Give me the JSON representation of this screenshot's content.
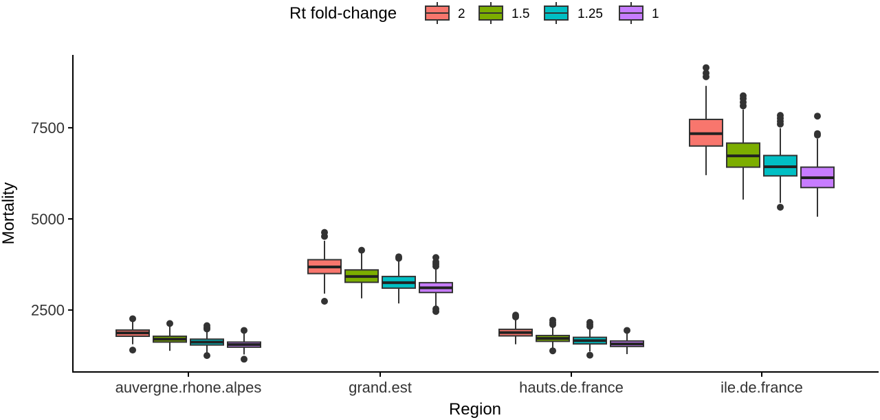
{
  "chart_data": {
    "type": "boxplot",
    "xlabel": "Region",
    "ylabel": "Mortality",
    "ylim": [
      800,
      9500
    ],
    "yticks": [
      2500,
      5000,
      7500
    ],
    "categories": [
      "auvergne.rhone.alpes",
      "grand.est",
      "hauts.de.france",
      "ile.de.france"
    ],
    "legend": {
      "title": "Rt fold-change",
      "position": "top"
    },
    "grid": false,
    "series": [
      {
        "name": "2",
        "color": "#F8766D",
        "boxes": [
          {
            "q1": 1780,
            "median": 1870,
            "q3": 1950,
            "whisker_low": 1560,
            "whisker_high": 2180,
            "outliers": [
              1400,
              2260
            ]
          },
          {
            "q1": 3500,
            "median": 3680,
            "q3": 3880,
            "whisker_low": 2950,
            "whisker_high": 4400,
            "outliers": [
              2740,
              4520,
              4630
            ]
          },
          {
            "q1": 1790,
            "median": 1880,
            "q3": 1970,
            "whisker_low": 1560,
            "whisker_high": 2250,
            "outliers": [
              2310,
              2360
            ]
          },
          {
            "q1": 7000,
            "median": 7340,
            "q3": 7730,
            "whisker_low": 6200,
            "whisker_high": 8650,
            "outliers": [
              8900,
              9000,
              9150
            ]
          }
        ]
      },
      {
        "name": "1.5",
        "color": "#7CAE00",
        "boxes": [
          {
            "q1": 1620,
            "median": 1700,
            "q3": 1780,
            "whisker_low": 1380,
            "whisker_high": 2060,
            "outliers": [
              2130
            ]
          },
          {
            "q1": 3260,
            "median": 3420,
            "q3": 3600,
            "whisker_low": 2820,
            "whisker_high": 4100,
            "outliers": [
              4140
            ]
          },
          {
            "q1": 1640,
            "median": 1720,
            "q3": 1800,
            "whisker_low": 1450,
            "whisker_high": 2060,
            "outliers": [
              1380,
              2100,
              2150,
              2220
            ]
          },
          {
            "q1": 6420,
            "median": 6730,
            "q3": 7080,
            "whisker_low": 5530,
            "whisker_high": 8000,
            "outliers": [
              8100,
              8200,
              8300,
              8380
            ]
          }
        ]
      },
      {
        "name": "1.25",
        "color": "#00BFC4",
        "boxes": [
          {
            "q1": 1540,
            "median": 1620,
            "q3": 1700,
            "whisker_low": 1330,
            "whisker_high": 1920,
            "outliers": [
              1250,
              1980,
              2020,
              2070
            ]
          },
          {
            "q1": 3100,
            "median": 3250,
            "q3": 3420,
            "whisker_low": 2680,
            "whisker_high": 3880,
            "outliers": [
              3920,
              3960
            ]
          },
          {
            "q1": 1570,
            "median": 1660,
            "q3": 1750,
            "whisker_low": 1360,
            "whisker_high": 2000,
            "outliers": [
              1260,
              2050,
              2100,
              2160
            ]
          },
          {
            "q1": 6180,
            "median": 6430,
            "q3": 6740,
            "whisker_low": 5440,
            "whisker_high": 7490,
            "outliers": [
              5320,
              7600,
              7680,
              7760,
              7840
            ]
          }
        ]
      },
      {
        "name": "1",
        "color": "#C77CFF",
        "boxes": [
          {
            "q1": 1480,
            "median": 1550,
            "q3": 1620,
            "whisker_low": 1280,
            "whisker_high": 1860,
            "outliers": [
              1150,
              1940
            ]
          },
          {
            "q1": 2980,
            "median": 3110,
            "q3": 3250,
            "whisker_low": 2580,
            "whisker_high": 3620,
            "outliers": [
              2460,
              2530,
              3700,
              3760,
              3820,
              3940
            ]
          },
          {
            "q1": 1500,
            "median": 1570,
            "q3": 1650,
            "whisker_low": 1290,
            "whisker_high": 1880,
            "outliers": [
              1940
            ]
          },
          {
            "q1": 5860,
            "median": 6130,
            "q3": 6420,
            "whisker_low": 5060,
            "whisker_high": 7200,
            "outliers": [
              7300,
              7340,
              7820
            ]
          }
        ]
      }
    ]
  }
}
